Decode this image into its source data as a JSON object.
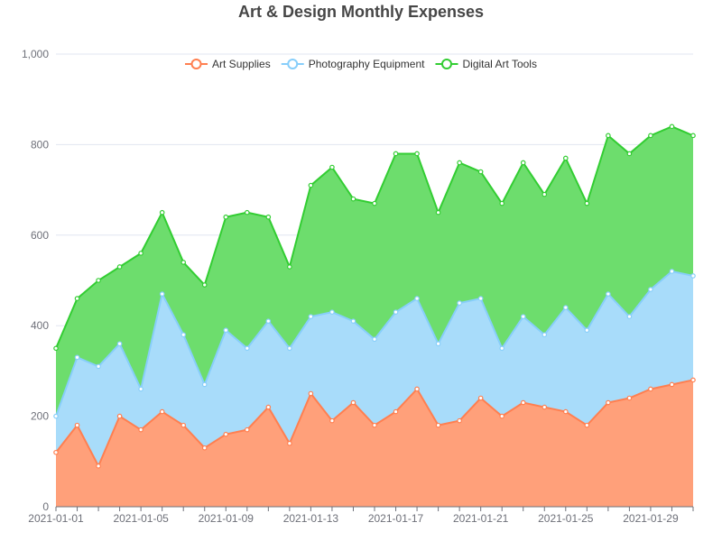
{
  "chart_data": {
    "type": "area",
    "stacked": true,
    "title": "Art & Design Monthly Expenses",
    "xlabel": "",
    "ylabel": "",
    "ylim": [
      0,
      1000
    ],
    "y_ticks": [
      0,
      200,
      400,
      600,
      800,
      1000
    ],
    "y_tick_labels": [
      "0",
      "200",
      "400",
      "600",
      "800",
      "1,000"
    ],
    "x": [
      "2021-01-01",
      "2021-01-02",
      "2021-01-03",
      "2021-01-04",
      "2021-01-05",
      "2021-01-06",
      "2021-01-07",
      "2021-01-08",
      "2021-01-09",
      "2021-01-10",
      "2021-01-11",
      "2021-01-12",
      "2021-01-13",
      "2021-01-14",
      "2021-01-15",
      "2021-01-16",
      "2021-01-17",
      "2021-01-18",
      "2021-01-19",
      "2021-01-20",
      "2021-01-21",
      "2021-01-22",
      "2021-01-23",
      "2021-01-24",
      "2021-01-25",
      "2021-01-26",
      "2021-01-27",
      "2021-01-28",
      "2021-01-29",
      "2021-01-30",
      "2021-01-31"
    ],
    "x_tick_labels": [
      "2021-01-01",
      "2021-01-05",
      "2021-01-09",
      "2021-01-13",
      "2021-01-17",
      "2021-01-21",
      "2021-01-25",
      "2021-01-29"
    ],
    "legend_position": "top-center",
    "grid": true,
    "series": [
      {
        "name": "Art Supplies",
        "color": "#ff7f50",
        "fill": "#ffa07a",
        "values": [
          120,
          180,
          90,
          200,
          170,
          210,
          180,
          130,
          160,
          170,
          220,
          140,
          250,
          190,
          230,
          180,
          210,
          260,
          180,
          190,
          240,
          200,
          230,
          220,
          210,
          180,
          230,
          240,
          260,
          270,
          280
        ]
      },
      {
        "name": "Photography Equipment",
        "color": "#87cefa",
        "fill": "#a8dcfa",
        "values": [
          80,
          150,
          220,
          160,
          90,
          260,
          200,
          140,
          230,
          180,
          190,
          210,
          170,
          240,
          180,
          190,
          220,
          200,
          180,
          260,
          220,
          150,
          190,
          160,
          230,
          210,
          240,
          180,
          220,
          250,
          230
        ]
      },
      {
        "name": "Digital Art Tools",
        "color": "#32cd32",
        "fill": "#6ddd6d",
        "values": [
          150,
          130,
          190,
          170,
          300,
          180,
          160,
          220,
          250,
          300,
          230,
          180,
          290,
          320,
          270,
          300,
          350,
          320,
          290,
          310,
          280,
          320,
          340,
          310,
          330,
          280,
          350,
          360,
          340,
          320,
          310
        ]
      }
    ]
  }
}
